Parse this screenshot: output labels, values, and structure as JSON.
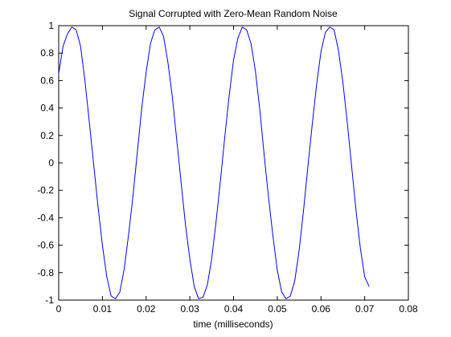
{
  "chart_data": {
    "type": "line",
    "title": "Signal Corrupted with Zero-Mean Random Noise",
    "xlabel": "time (milliseconds)",
    "ylabel": "",
    "xlim": [
      0,
      0.08
    ],
    "ylim": [
      -1,
      1
    ],
    "xticks": [
      "0",
      "0.01",
      "0.02",
      "0.03",
      "0.04",
      "0.05",
      "0.06",
      "0.07",
      "0.08"
    ],
    "yticks": [
      "1",
      "0.8",
      "0.6",
      "0.4",
      "0.2",
      "0",
      "-0.2",
      "-0.4",
      "-0.6",
      "-0.8",
      "-1"
    ],
    "grid": false,
    "series": [
      {
        "color": "#0000ff",
        "x": [
          0,
          0.001,
          0.002,
          0.003,
          0.004,
          0.005,
          0.006,
          0.007,
          0.008,
          0.009,
          0.01,
          0.011,
          0.012,
          0.013,
          0.014,
          0.015,
          0.016,
          0.017,
          0.018,
          0.019,
          0.02,
          0.021,
          0.022,
          0.023,
          0.024,
          0.025,
          0.026,
          0.027,
          0.028,
          0.029,
          0.03,
          0.031,
          0.032,
          0.033,
          0.034,
          0.035,
          0.036,
          0.037,
          0.038,
          0.039,
          0.04,
          0.041,
          0.042,
          0.043,
          0.044,
          0.045,
          0.046,
          0.047,
          0.048,
          0.049,
          0.05,
          0.051,
          0.052,
          0.053,
          0.054,
          0.055,
          0.056,
          0.057,
          0.058,
          0.059,
          0.06,
          0.061,
          0.062,
          0.063,
          0.064,
          0.065,
          0.066,
          0.067,
          0.068,
          0.069,
          0.07,
          0.071
        ],
        "y": [
          0.65,
          0.85,
          0.94,
          0.99,
          0.97,
          0.85,
          0.6,
          0.3,
          -0.01,
          -0.32,
          -0.6,
          -0.83,
          -0.97,
          -0.99,
          -0.94,
          -0.77,
          -0.52,
          -0.24,
          0.08,
          0.4,
          0.66,
          0.87,
          0.97,
          0.99,
          0.92,
          0.73,
          0.48,
          0.17,
          -0.14,
          -0.45,
          -0.7,
          -0.9,
          -0.99,
          -0.98,
          -0.89,
          -0.7,
          -0.43,
          -0.13,
          0.19,
          0.49,
          0.75,
          0.91,
          0.99,
          0.97,
          0.87,
          0.67,
          0.39,
          0.06,
          -0.25,
          -0.53,
          -0.78,
          -0.94,
          -0.99,
          -0.97,
          -0.86,
          -0.64,
          -0.35,
          -0.03,
          0.28,
          0.57,
          0.81,
          0.95,
          0.99,
          0.97,
          0.82,
          0.59,
          0.3,
          -0.02,
          -0.34,
          -0.62,
          -0.83,
          -0.9
        ]
      }
    ]
  }
}
